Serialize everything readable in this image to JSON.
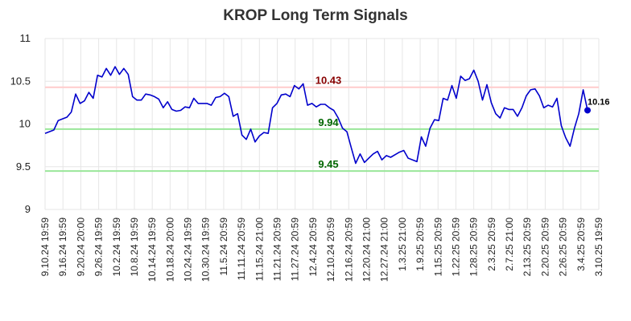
{
  "chart_data": {
    "type": "line",
    "title": "KROP Long Term Signals",
    "ylim": [
      9,
      11
    ],
    "y_ticks": [
      "9",
      "9.5",
      "10",
      "10.5",
      "11"
    ],
    "x_tick_labels": [
      "9.10.24 19:59",
      "9.16.24 19:59",
      "9.20.24 20:00",
      "9.26.24 19:59",
      "10.2.24 19:59",
      "10.8.24 19:59",
      "10.14.24 19:59",
      "10.18.24 20:00",
      "10.24.24 19:59",
      "10.30.24 19:59",
      "11.5.24 20:59",
      "11.11.24 20:59",
      "11.15.24 21:00",
      "11.21.24 20:59",
      "11.27.24 20:59",
      "12.4.24 20:59",
      "12.10.24 20:59",
      "12.16.24 20:59",
      "12.20.24 21:00",
      "12.27.24 21:00",
      "1.3.25 21:00",
      "1.9.25 20:59",
      "1.15.25 20:59",
      "1.22.25 20:59",
      "1.28.25 20:59",
      "2.3.25 20:59",
      "2.7.25 21:00",
      "2.13.25 20:59",
      "2.20.25 20:59",
      "2.26.25 20:59",
      "3.4.25 20:59",
      "3.10.25 19:59"
    ],
    "grid": true,
    "series": [
      {
        "color": "#0000cc",
        "values": [
          9.89,
          9.91,
          9.93,
          10.04,
          10.06,
          10.08,
          10.14,
          10.35,
          10.24,
          10.27,
          10.37,
          10.3,
          10.57,
          10.55,
          10.65,
          10.57,
          10.67,
          10.58,
          10.65,
          10.58,
          10.32,
          10.28,
          10.28,
          10.35,
          10.34,
          10.32,
          10.29,
          10.19,
          10.26,
          10.17,
          10.15,
          10.16,
          10.2,
          10.19,
          10.3,
          10.24,
          10.24,
          10.24,
          10.22,
          10.31,
          10.32,
          10.36,
          10.32,
          10.09,
          10.12,
          9.87,
          9.82,
          9.94,
          9.79,
          9.86,
          9.9,
          9.89,
          10.19,
          10.24,
          10.34,
          10.35,
          10.32,
          10.45,
          10.41,
          10.47,
          10.22,
          10.24,
          10.2,
          10.23,
          10.23,
          10.19,
          10.16,
          10.07,
          9.95,
          9.91,
          9.72,
          9.54,
          9.65,
          9.55,
          9.6,
          9.65,
          9.68,
          9.58,
          9.63,
          9.61,
          9.64,
          9.67,
          9.69,
          9.6,
          9.58,
          9.56,
          9.85,
          9.74,
          9.95,
          10.05,
          10.04,
          10.3,
          10.28,
          10.45,
          10.3,
          10.56,
          10.51,
          10.53,
          10.63,
          10.5,
          10.28,
          10.46,
          10.25,
          10.12,
          10.07,
          10.19,
          10.17,
          10.17,
          10.09,
          10.19,
          10.33,
          10.4,
          10.41,
          10.33,
          10.19,
          10.22,
          10.2,
          10.3,
          9.98,
          9.84,
          9.74,
          9.95,
          10.12,
          10.4,
          10.16
        ]
      }
    ],
    "levels": [
      {
        "value": 10.43,
        "label": "10.43",
        "line_color": "#ffcccc",
        "label_color": "#880000"
      },
      {
        "value": 9.94,
        "label": "9.94",
        "line_color": "#99e699",
        "label_color": "#006600"
      },
      {
        "value": 9.45,
        "label": "9.45",
        "line_color": "#99e699",
        "label_color": "#006600"
      }
    ],
    "last_value": {
      "value": 10.16,
      "label": "10.16"
    }
  }
}
